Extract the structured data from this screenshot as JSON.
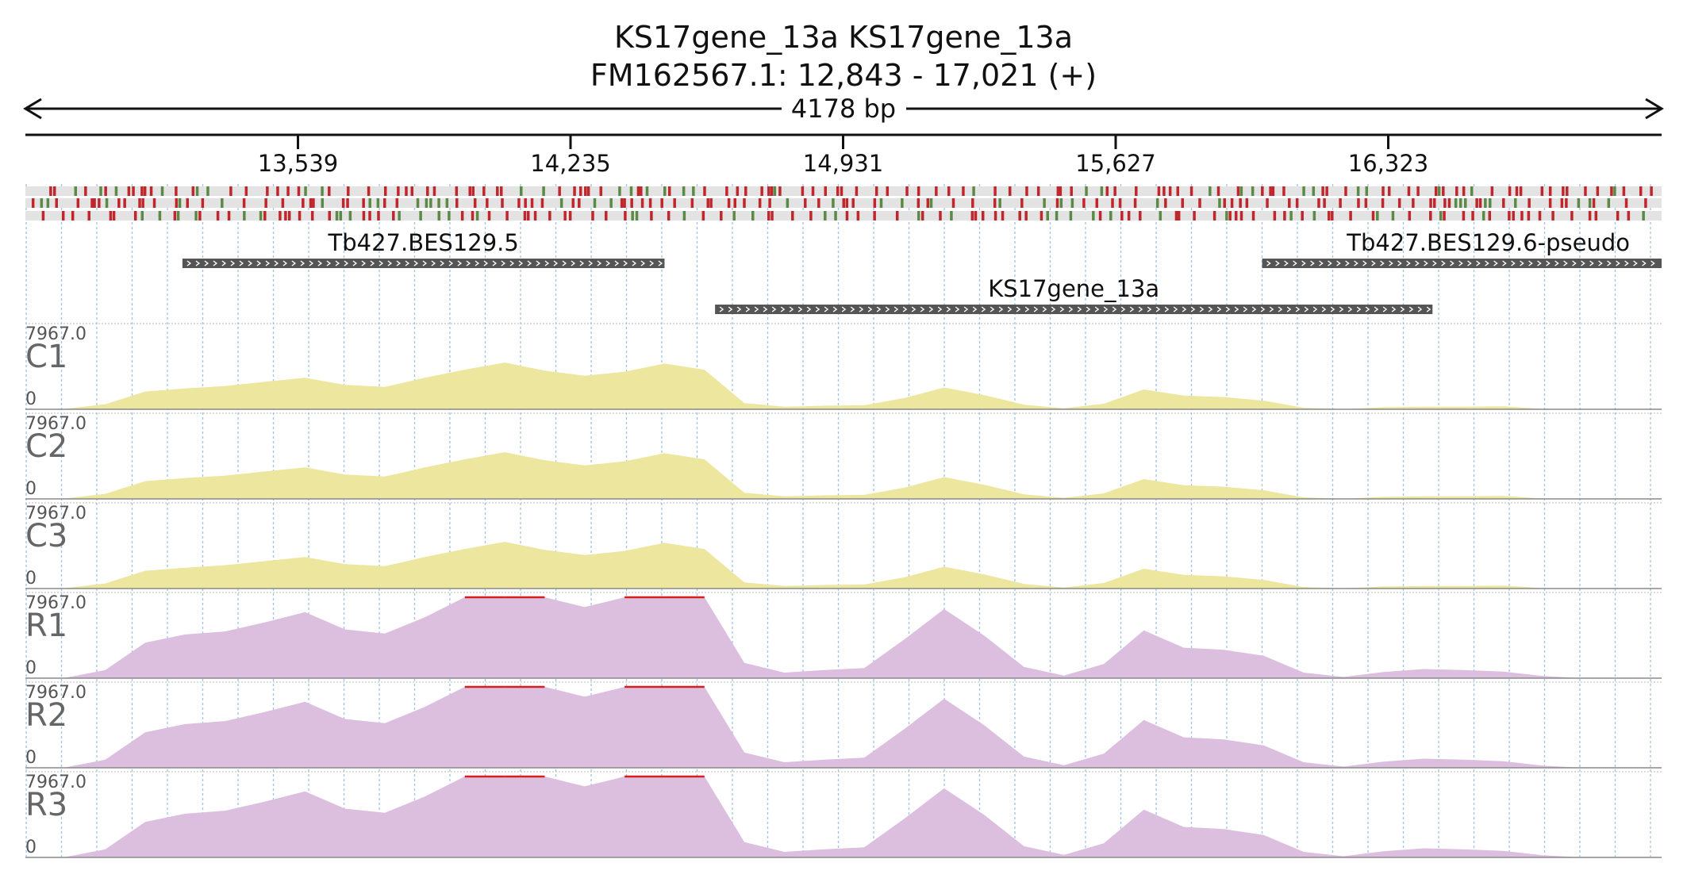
{
  "header": {
    "title": "KS17gene_13a  KS17gene_13a",
    "locus": "FM162567.1: 12,843 - 17,021 (+)",
    "length_label": "4178 bp"
  },
  "ruler": {
    "start": 12843,
    "end": 17021,
    "ticks": [
      13539,
      14235,
      14931,
      15627,
      16323
    ],
    "tick_labels": [
      "13,539",
      "14,235",
      "14,931",
      "15,627",
      "16,323"
    ]
  },
  "colors": {
    "stop_codon": "#c0272d",
    "start_codon": "#5a8a45",
    "frame_bg": "#e3e3e3",
    "gene": "#555555",
    "control_coverage": "#ece69e",
    "rnai_coverage": "#dcbedf",
    "clipped": "#d62020",
    "grid": "#9ec3e6"
  },
  "genes": [
    {
      "name": "Tb427.BES129.5",
      "start": 13244,
      "end": 14475,
      "row": 0,
      "strand": "+"
    },
    {
      "name": "Tb427.BES129.6-pseudo",
      "start": 16001,
      "end": 17021,
      "row": 0,
      "strand": "+"
    },
    {
      "name": "KS17gene_13a",
      "start": 14604,
      "end": 16436,
      "row": 1,
      "strand": "+"
    }
  ],
  "chart_data": {
    "type": "area",
    "xlabel": "",
    "ylabel": "",
    "x": [
      12843,
      12945,
      13047,
      13149,
      13251,
      13353,
      13455,
      13557,
      13659,
      13761,
      13863,
      13965,
      14067,
      14169,
      14271,
      14373,
      14475,
      14577,
      14679,
      14781,
      14883,
      14985,
      15087,
      15189,
      15291,
      15393,
      15495,
      15597,
      15699,
      15801,
      15903,
      16005,
      16107,
      16209,
      16311,
      16413,
      16515,
      16617,
      16719,
      16821,
      16923,
      17021
    ],
    "ylim": [
      0,
      7967.0
    ],
    "y_max_label": "7967.0",
    "y_min_label": "0",
    "series": [
      {
        "name": "C1",
        "group": "control",
        "values": [
          0,
          40,
          500,
          1750,
          2050,
          2300,
          2700,
          3100,
          2400,
          2200,
          3100,
          3900,
          4600,
          3800,
          3300,
          3700,
          4500,
          3900,
          600,
          250,
          350,
          400,
          1100,
          2150,
          1400,
          450,
          100,
          550,
          1950,
          1350,
          1200,
          850,
          150,
          25,
          200,
          250,
          250,
          300,
          30,
          0,
          0,
          0
        ]
      },
      {
        "name": "C2",
        "group": "control",
        "values": [
          0,
          40,
          500,
          1750,
          2050,
          2300,
          2700,
          3100,
          2400,
          2200,
          3100,
          3900,
          4600,
          3800,
          3300,
          3700,
          4500,
          3900,
          600,
          250,
          350,
          400,
          1100,
          2150,
          1400,
          450,
          100,
          550,
          1950,
          1350,
          1200,
          850,
          150,
          25,
          200,
          250,
          250,
          300,
          30,
          0,
          0,
          0
        ]
      },
      {
        "name": "C3",
        "group": "control",
        "values": [
          0,
          40,
          500,
          1750,
          2050,
          2300,
          2700,
          3100,
          2400,
          2200,
          3100,
          3900,
          4600,
          3800,
          3300,
          3700,
          4500,
          3900,
          600,
          250,
          350,
          400,
          1100,
          2150,
          1400,
          450,
          100,
          550,
          1950,
          1350,
          1200,
          850,
          150,
          25,
          200,
          250,
          250,
          300,
          30,
          0,
          0,
          0
        ]
      },
      {
        "name": "R1",
        "group": "rnai",
        "values": [
          0,
          40,
          800,
          3500,
          4300,
          4600,
          5500,
          6500,
          4800,
          4400,
          6000,
          7967,
          7967,
          7967,
          7000,
          7967,
          7967,
          7967,
          1500,
          550,
          800,
          1000,
          3800,
          6800,
          4200,
          1100,
          250,
          1400,
          4700,
          3000,
          2800,
          2200,
          550,
          120,
          600,
          900,
          800,
          650,
          200,
          0,
          0,
          0
        ]
      },
      {
        "name": "R2",
        "group": "rnai",
        "values": [
          0,
          40,
          800,
          3500,
          4300,
          4600,
          5500,
          6500,
          4800,
          4400,
          6000,
          7967,
          7967,
          7967,
          7000,
          7967,
          7967,
          7967,
          1500,
          550,
          800,
          1000,
          3800,
          6800,
          4200,
          1100,
          250,
          1400,
          4700,
          3000,
          2800,
          2200,
          550,
          120,
          600,
          900,
          800,
          650,
          200,
          0,
          0,
          0
        ]
      },
      {
        "name": "R3",
        "group": "rnai",
        "values": [
          0,
          40,
          800,
          3500,
          4300,
          4600,
          5500,
          6500,
          4800,
          4400,
          6000,
          7967,
          7967,
          7967,
          7000,
          7967,
          7967,
          7967,
          1500,
          550,
          800,
          1000,
          3800,
          6800,
          4200,
          1100,
          250,
          1400,
          4700,
          3000,
          2800,
          2200,
          550,
          120,
          600,
          900,
          800,
          650,
          200,
          0,
          0,
          0
        ]
      }
    ]
  }
}
